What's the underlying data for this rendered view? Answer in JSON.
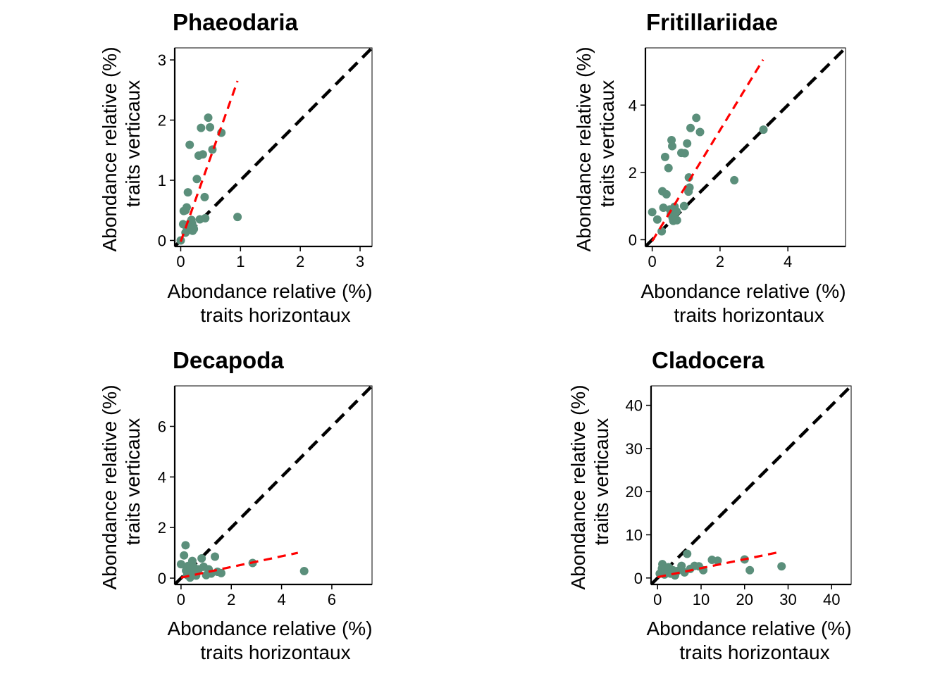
{
  "style": {
    "point_color": "#5b8f7b",
    "identity_line_color": "#000000",
    "fit_line_color": "#ff0000",
    "background": "#ffffff"
  },
  "chart_data": [
    {
      "type": "scatter",
      "title": "Phaeodaria",
      "xlabel": [
        "Abondance relative (%)",
        "traits horizontaux"
      ],
      "ylabel": [
        "Abondance relative (%)",
        "traits verticaux"
      ],
      "xlim": [
        -0.1,
        3.2
      ],
      "ylim": [
        -0.1,
        3.2
      ],
      "xticks": [
        0,
        1,
        2,
        3
      ],
      "yticks": [
        0,
        1,
        2,
        3
      ],
      "identity_line": true,
      "fit_line": {
        "x": [
          0.0,
          0.95
        ],
        "y": [
          -0.02,
          2.65
        ]
      },
      "points": [
        {
          "x": 0.0,
          "y": 0.0
        },
        {
          "x": 0.04,
          "y": 0.27
        },
        {
          "x": 0.05,
          "y": 0.49
        },
        {
          "x": 0.08,
          "y": 0.13
        },
        {
          "x": 0.08,
          "y": 0.5
        },
        {
          "x": 0.09,
          "y": 0.24
        },
        {
          "x": 0.1,
          "y": 0.55
        },
        {
          "x": 0.12,
          "y": 0.8
        },
        {
          "x": 0.15,
          "y": 1.59
        },
        {
          "x": 0.16,
          "y": 0.3
        },
        {
          "x": 0.17,
          "y": 0.21
        },
        {
          "x": 0.18,
          "y": 0.34
        },
        {
          "x": 0.19,
          "y": 0.28
        },
        {
          "x": 0.2,
          "y": 0.16
        },
        {
          "x": 0.21,
          "y": 0.22
        },
        {
          "x": 0.22,
          "y": 0.19
        },
        {
          "x": 0.27,
          "y": 1.02
        },
        {
          "x": 0.3,
          "y": 1.41
        },
        {
          "x": 0.32,
          "y": 0.35
        },
        {
          "x": 0.34,
          "y": 1.87
        },
        {
          "x": 0.37,
          "y": 1.43
        },
        {
          "x": 0.4,
          "y": 0.72
        },
        {
          "x": 0.41,
          "y": 0.37
        },
        {
          "x": 0.46,
          "y": 2.04
        },
        {
          "x": 0.49,
          "y": 1.88
        },
        {
          "x": 0.53,
          "y": 1.51
        },
        {
          "x": 0.68,
          "y": 1.79
        },
        {
          "x": 0.95,
          "y": 0.39
        }
      ]
    },
    {
      "type": "scatter",
      "title": "Fritillariidae",
      "xlabel": [
        "Abondance relative (%)",
        "traits horizontaux"
      ],
      "ylabel": [
        "Abondance relative (%)",
        "traits verticaux"
      ],
      "xlim": [
        -0.2,
        5.7
      ],
      "ylim": [
        -0.2,
        5.7
      ],
      "xticks": [
        0,
        2,
        4
      ],
      "yticks": [
        0,
        2,
        4
      ],
      "identity_line": true,
      "fit_line": {
        "x": [
          0.0,
          3.27
        ],
        "y": [
          -0.04,
          5.35
        ]
      },
      "points": [
        {
          "x": 0.0,
          "y": 0.82
        },
        {
          "x": 0.15,
          "y": 0.6
        },
        {
          "x": 0.28,
          "y": 0.25
        },
        {
          "x": 0.3,
          "y": 1.44
        },
        {
          "x": 0.33,
          "y": 0.95
        },
        {
          "x": 0.38,
          "y": 2.46
        },
        {
          "x": 0.42,
          "y": 1.35
        },
        {
          "x": 0.48,
          "y": 2.13
        },
        {
          "x": 0.52,
          "y": 0.9
        },
        {
          "x": 0.55,
          "y": 0.76
        },
        {
          "x": 0.57,
          "y": 2.96
        },
        {
          "x": 0.59,
          "y": 2.78
        },
        {
          "x": 0.6,
          "y": 0.65
        },
        {
          "x": 0.62,
          "y": 0.56
        },
        {
          "x": 0.66,
          "y": 0.98
        },
        {
          "x": 0.69,
          "y": 0.61
        },
        {
          "x": 0.72,
          "y": 0.84
        },
        {
          "x": 0.73,
          "y": 0.58
        },
        {
          "x": 0.86,
          "y": 2.58
        },
        {
          "x": 0.94,
          "y": 1.0
        },
        {
          "x": 0.96,
          "y": 2.57
        },
        {
          "x": 1.03,
          "y": 2.86
        },
        {
          "x": 1.07,
          "y": 1.43
        },
        {
          "x": 1.08,
          "y": 1.85
        },
        {
          "x": 1.1,
          "y": 1.55
        },
        {
          "x": 1.13,
          "y": 3.32
        },
        {
          "x": 1.3,
          "y": 3.62
        },
        {
          "x": 1.41,
          "y": 3.2
        },
        {
          "x": 2.42,
          "y": 1.77
        },
        {
          "x": 3.28,
          "y": 3.27
        }
      ]
    },
    {
      "type": "scatter",
      "title": "Decapoda",
      "xlabel": [
        "Abondance relative (%)",
        "traits horizontaux"
      ],
      "ylabel": [
        "Abondance relative (%)",
        "traits verticaux"
      ],
      "xlim": [
        -0.25,
        7.6
      ],
      "ylim": [
        -0.25,
        7.6
      ],
      "xticks": [
        0,
        2,
        4,
        6
      ],
      "yticks": [
        0,
        2,
        4,
        6
      ],
      "identity_line": true,
      "fit_line": {
        "x": [
          0.0,
          4.65
        ],
        "y": [
          0.02,
          1.0
        ]
      },
      "points": [
        {
          "x": 0.0,
          "y": 0.55
        },
        {
          "x": 0.12,
          "y": 0.9
        },
        {
          "x": 0.18,
          "y": 1.3
        },
        {
          "x": 0.2,
          "y": 0.3
        },
        {
          "x": 0.25,
          "y": 0.12
        },
        {
          "x": 0.28,
          "y": 0.48
        },
        {
          "x": 0.3,
          "y": 0.2
        },
        {
          "x": 0.33,
          "y": 0.32
        },
        {
          "x": 0.36,
          "y": 0.02
        },
        {
          "x": 0.38,
          "y": 0.38
        },
        {
          "x": 0.45,
          "y": 0.68
        },
        {
          "x": 0.48,
          "y": 0.15
        },
        {
          "x": 0.5,
          "y": 0.45
        },
        {
          "x": 0.55,
          "y": 0.25
        },
        {
          "x": 0.6,
          "y": 0.1
        },
        {
          "x": 0.7,
          "y": 0.35
        },
        {
          "x": 0.82,
          "y": 0.78
        },
        {
          "x": 0.9,
          "y": 0.45
        },
        {
          "x": 1.0,
          "y": 0.12
        },
        {
          "x": 1.1,
          "y": 0.35
        },
        {
          "x": 1.2,
          "y": 0.18
        },
        {
          "x": 1.35,
          "y": 0.85
        },
        {
          "x": 1.45,
          "y": 0.25
        },
        {
          "x": 1.6,
          "y": 0.2
        },
        {
          "x": 2.85,
          "y": 0.6
        },
        {
          "x": 4.9,
          "y": 0.28
        }
      ]
    },
    {
      "type": "scatter",
      "title": "Cladocera",
      "xlabel": [
        "Abondance relative (%)",
        "traits horizontaux"
      ],
      "ylabel": [
        "Abondance relative (%)",
        "traits verticaux"
      ],
      "xlim": [
        -1.5,
        44.5
      ],
      "ylim": [
        -1.5,
        44.5
      ],
      "xticks": [
        0,
        10,
        20,
        30,
        40
      ],
      "yticks": [
        0,
        10,
        20,
        30,
        40
      ],
      "identity_line": true,
      "fit_line": {
        "x": [
          0.0,
          28.0
        ],
        "y": [
          0.2,
          6.0
        ]
      },
      "points": [
        {
          "x": 0.5,
          "y": 1.0
        },
        {
          "x": 1.0,
          "y": 2.2
        },
        {
          "x": 1.1,
          "y": 3.2
        },
        {
          "x": 1.3,
          "y": 1.5
        },
        {
          "x": 1.6,
          "y": 0.8
        },
        {
          "x": 1.8,
          "y": 2.0
        },
        {
          "x": 2.2,
          "y": 1.2
        },
        {
          "x": 2.5,
          "y": 2.5
        },
        {
          "x": 3.0,
          "y": 1.0
        },
        {
          "x": 3.5,
          "y": 1.8
        },
        {
          "x": 4.0,
          "y": 0.6
        },
        {
          "x": 4.5,
          "y": 1.6
        },
        {
          "x": 5.5,
          "y": 2.8
        },
        {
          "x": 6.2,
          "y": 1.3
        },
        {
          "x": 6.8,
          "y": 5.6
        },
        {
          "x": 7.5,
          "y": 2.1
        },
        {
          "x": 8.5,
          "y": 2.8
        },
        {
          "x": 9.5,
          "y": 2.7
        },
        {
          "x": 10.5,
          "y": 1.8
        },
        {
          "x": 12.5,
          "y": 4.2
        },
        {
          "x": 13.8,
          "y": 4.0
        },
        {
          "x": 20.0,
          "y": 4.3
        },
        {
          "x": 21.2,
          "y": 1.8
        },
        {
          "x": 28.5,
          "y": 2.7
        }
      ]
    }
  ]
}
